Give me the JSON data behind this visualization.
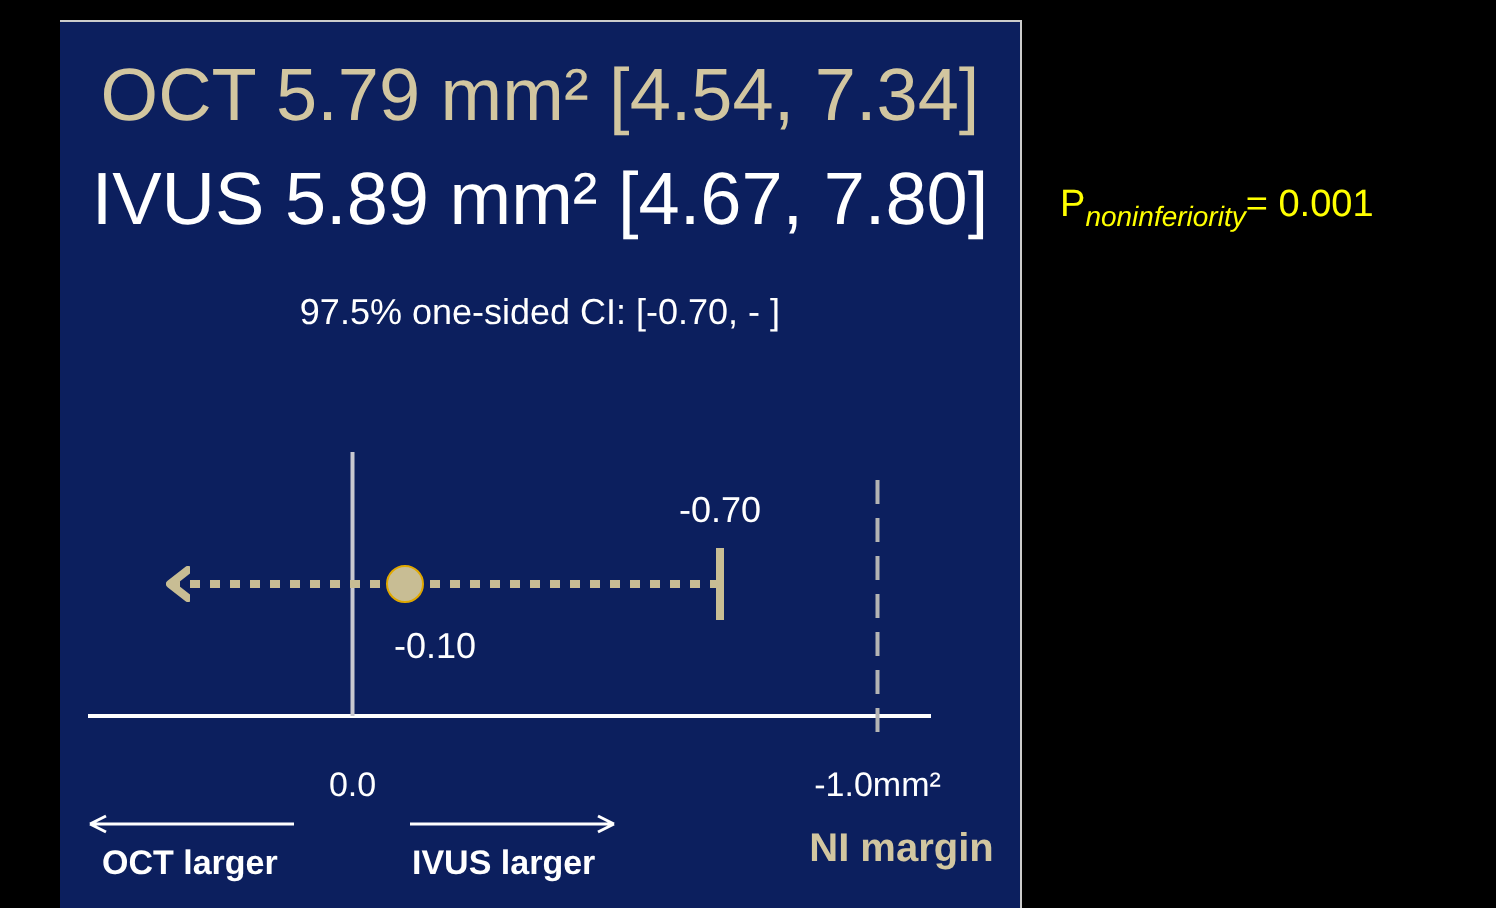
{
  "chart_data": {
    "type": "scatter",
    "orientation": "horizontal",
    "title": "OCT 5.79 mm² [4.54, 7.34]",
    "subtitle": "IVUS 5.89 mm² [4.67, 7.80]",
    "annotations": [
      "97.5% one-sided CI: [-0.70, - ]",
      "P$_{noninferiority}$= 0.001",
      "OCT larger",
      "IVUS larger",
      "-0.70"
    ],
    "categories": [
      null
    ],
    "values": [
      -0.1
    ],
    "value_labels": [
      "-0.10"
    ],
    "errors": [
      [
        -0.7,
        0.35
      ]
    ],
    "color": "#c8bd94",
    "xlim": [
      0.5,
      -1.1
    ],
    "xticks": [
      {
        "value": 0,
        "label": "0.0"
      },
      {
        "value": -1,
        "label": "-1.0mm²"
      }
    ],
    "tick_labels": "x",
    "legend": false,
    "marker": "circle",
    "line_style": "dotted",
    "ref_lines": [
      {
        "axis": "x",
        "value": 0,
        "color": "#c8c8d0",
        "line_style": "solid"
      },
      {
        "axis": "x",
        "value": -1,
        "label": "NI margin",
        "color": "#b4b4b4",
        "line_style": "dashed"
      }
    ]
  }
}
